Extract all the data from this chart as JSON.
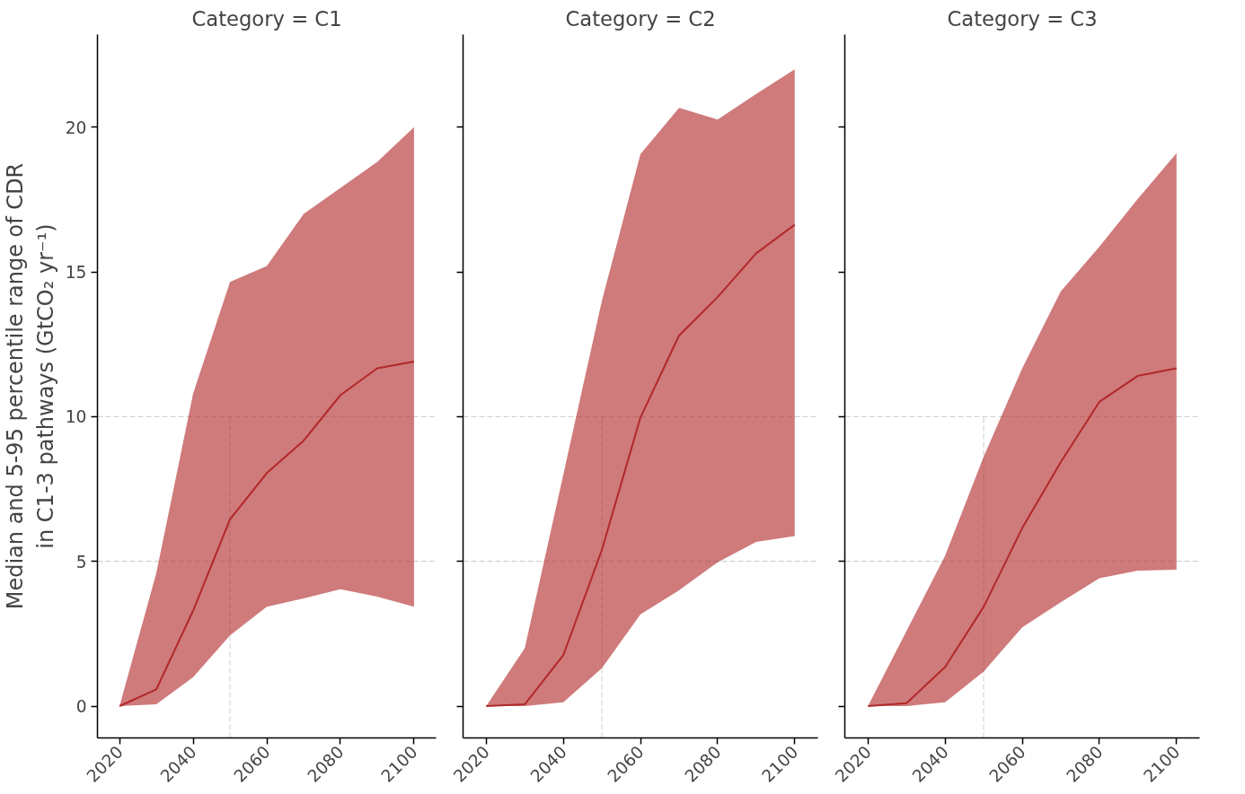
{
  "chart_data": [
    {
      "type": "line",
      "title": "Category = C1",
      "ylabel": "Median and 5-95 percentile range of CDR\nin C1-3 pathways (GtCO₂ yr⁻¹)",
      "x": [
        2020,
        2030,
        2040,
        2050,
        2060,
        2070,
        2080,
        2090,
        2100
      ],
      "xlim": [
        2014,
        2106
      ],
      "xticks": [
        2020,
        2040,
        2060,
        2080,
        2100
      ],
      "ylim": [
        -1.1,
        23.2
      ],
      "yticks": [
        0,
        5,
        10,
        15,
        20
      ],
      "grid": false,
      "series": [
        {
          "color": "#b2282a",
          "values": [
            0,
            0.58,
            3.3,
            6.45,
            8.05,
            9.17,
            10.74,
            11.67,
            11.9
          ],
          "lower": [
            0,
            0.06,
            1.0,
            2.44,
            3.43,
            3.72,
            4.04,
            3.78,
            3.43
          ],
          "upper": [
            0,
            4.6,
            10.8,
            14.65,
            15.2,
            17.0,
            17.9,
            18.8,
            20.0
          ]
        }
      ],
      "ref_lines": [
        {
          "axis": "y",
          "value": 5,
          "color": "#d3d3d3",
          "line_style": "dashed"
        },
        {
          "axis": "y",
          "value": 10,
          "color": "#d3d3d3",
          "line_style": "dashed"
        },
        {
          "axis": "x",
          "value": 2050,
          "color": "#d3d3d3",
          "line_style": "dashed"
        }
      ]
    },
    {
      "type": "line",
      "title": "Category = C2",
      "x": [
        2020,
        2030,
        2040,
        2050,
        2060,
        2070,
        2080,
        2090,
        2100
      ],
      "xlim": [
        2014,
        2106
      ],
      "xticks": [
        2020,
        2040,
        2060,
        2080,
        2100
      ],
      "ylim": [
        -1.1,
        23.2
      ],
      "yticks": [
        0,
        5,
        10,
        15,
        20
      ],
      "grid": false,
      "tick_labels": "x",
      "series": [
        {
          "color": "#b2282a",
          "values": [
            0,
            0.06,
            1.76,
            5.4,
            9.97,
            12.8,
            14.13,
            15.64,
            16.63
          ],
          "lower": [
            0,
            0,
            0.13,
            1.31,
            3.17,
            4.0,
            4.97,
            5.67,
            5.87
          ],
          "upper": [
            0,
            2.0,
            8.0,
            14.0,
            19.07,
            20.67,
            20.26,
            21.15,
            22.0
          ]
        }
      ],
      "ref_lines": [
        {
          "axis": "y",
          "value": 5,
          "color": "#d3d3d3",
          "line_style": "dashed"
        },
        {
          "axis": "y",
          "value": 10,
          "color": "#d3d3d3",
          "line_style": "dashed"
        },
        {
          "axis": "x",
          "value": 2050,
          "color": "#d3d3d3",
          "line_style": "dashed"
        }
      ]
    },
    {
      "type": "line",
      "title": "Category = C3",
      "x": [
        2020,
        2030,
        2040,
        2050,
        2060,
        2070,
        2080,
        2090,
        2100
      ],
      "xlim": [
        2014,
        2106
      ],
      "xticks": [
        2020,
        2040,
        2060,
        2080,
        2100
      ],
      "ylim": [
        -1.1,
        23.2
      ],
      "yticks": [
        0,
        5,
        10,
        15,
        20
      ],
      "grid": false,
      "tick_labels": "x",
      "series": [
        {
          "color": "#b2282a",
          "values": [
            0,
            0.1,
            1.35,
            3.43,
            6.15,
            8.43,
            10.51,
            11.41,
            11.67
          ],
          "lower": [
            0,
            0,
            0.13,
            1.19,
            2.72,
            3.59,
            4.42,
            4.68,
            4.71
          ],
          "upper": [
            0,
            2.6,
            5.19,
            8.62,
            11.67,
            14.33,
            15.87,
            17.53,
            19.1
          ]
        }
      ],
      "ref_lines": [
        {
          "axis": "y",
          "value": 5,
          "color": "#d3d3d3",
          "line_style": "dashed"
        },
        {
          "axis": "y",
          "value": 10,
          "color": "#d3d3d3",
          "line_style": "dashed"
        },
        {
          "axis": "x",
          "value": 2050,
          "color": "#d3d3d3",
          "line_style": "dashed"
        }
      ]
    }
  ]
}
